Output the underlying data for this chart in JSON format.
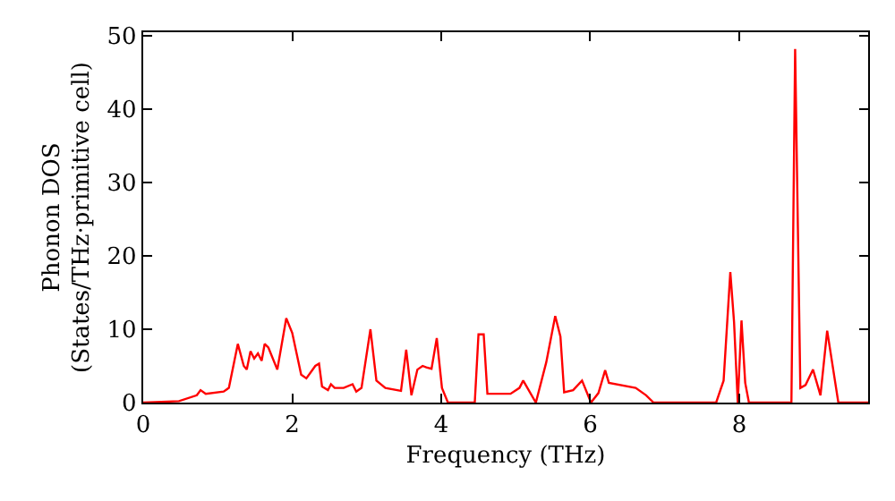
{
  "chart_data": {
    "type": "line",
    "xlabel": "Frequency (THz)",
    "ylabel": "Phonon DOS\n(States/THz·primitive cell)",
    "xlim": [
      0,
      9.73
    ],
    "ylim": [
      0,
      50.5
    ],
    "xticks": [
      0,
      2,
      4,
      6,
      8
    ],
    "yticks": [
      0,
      10,
      20,
      30,
      40,
      50
    ],
    "marker": "none",
    "line_style": "solid",
    "series": [
      {
        "color": "#ff0000",
        "x": [
          0,
          0.48,
          0.72,
          0.77,
          0.84,
          1.08,
          1.15,
          1.27,
          1.35,
          1.39,
          1.44,
          1.49,
          1.54,
          1.59,
          1.63,
          1.68,
          1.8,
          1.92,
          2.0,
          2.12,
          2.19,
          2.31,
          2.36,
          2.4,
          2.48,
          2.52,
          2.57,
          2.69,
          2.81,
          2.86,
          2.93,
          3.05,
          3.13,
          3.25,
          3.46,
          3.53,
          3.6,
          3.68,
          3.75,
          3.8,
          3.87,
          3.94,
          4.01,
          4.09,
          4.45,
          4.5,
          4.57,
          4.62,
          4.93,
          5.05,
          5.1,
          5.27,
          5.41,
          5.53,
          5.6,
          5.65,
          5.77,
          5.89,
          6.01,
          6.11,
          6.2,
          6.25,
          6.61,
          6.75,
          6.85,
          7.69,
          7.79,
          7.88,
          7.93,
          7.98,
          8.03,
          8.08,
          8.13,
          8.7,
          8.75,
          8.82,
          8.89,
          8.99,
          9.09,
          9.18,
          9.33,
          9.73
        ],
        "values": [
          0,
          0.2,
          1,
          1.7,
          1.2,
          1.5,
          2,
          8,
          5,
          4.5,
          7,
          6,
          6.7,
          5.7,
          8,
          7.5,
          4.5,
          11.5,
          9.5,
          3.8,
          3.3,
          5,
          5.3,
          2.2,
          1.7,
          2.5,
          2,
          2,
          2.5,
          1.5,
          2,
          10,
          3,
          2,
          1.6,
          7.2,
          1,
          4.5,
          5,
          4.8,
          4.6,
          8.8,
          2,
          0,
          0,
          9.3,
          9.3,
          1.2,
          1.2,
          2,
          3,
          0,
          5.5,
          11.8,
          9,
          1.4,
          1.7,
          3,
          0,
          1.3,
          4.4,
          2.7,
          2,
          1,
          0,
          0,
          3,
          17.8,
          11,
          0,
          11.2,
          2.7,
          0,
          0,
          48.2,
          2,
          2.4,
          4.5,
          1,
          9.8,
          0,
          0
        ]
      }
    ]
  }
}
